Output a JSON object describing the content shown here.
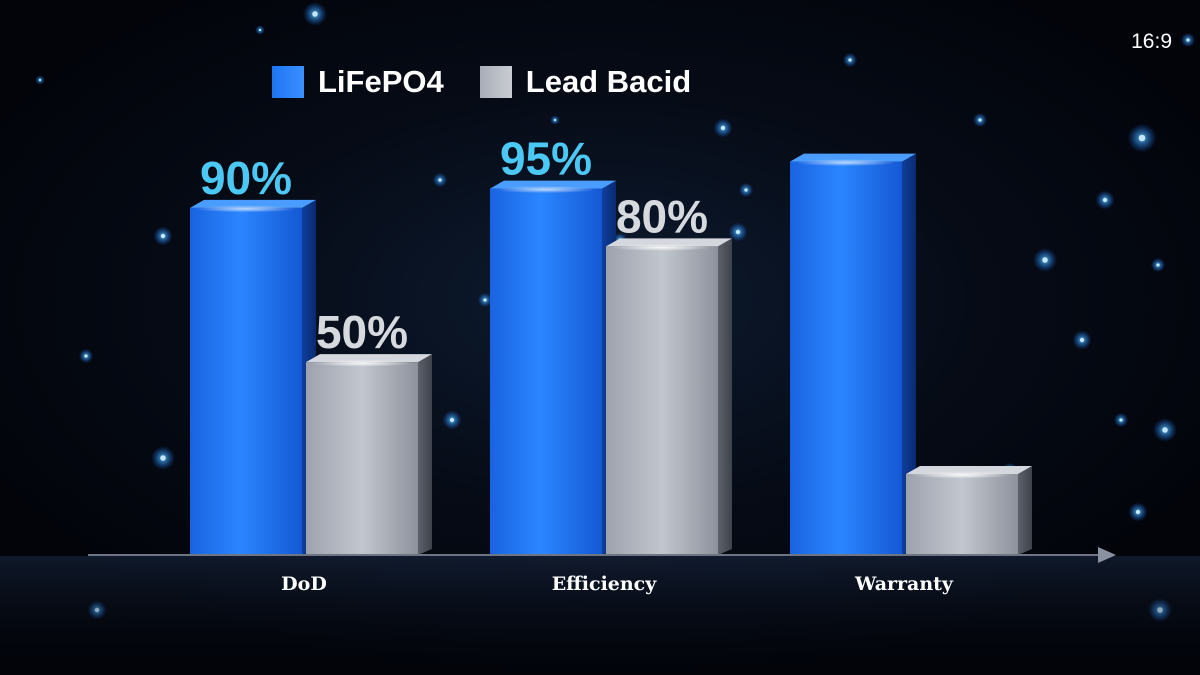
{
  "aspect_label": "16:9",
  "colors": {
    "lifepo4": "#1f74f2",
    "lead_bacid": "#a9adb7",
    "lifepo4_value_text": "#4cc8f4",
    "lead_bacid_value_text": "#d6d9de"
  },
  "chart_data": {
    "type": "bar",
    "categories": [
      "DoD",
      "Efficiency",
      "Warranty"
    ],
    "series": [
      {
        "name": "LiFePO4",
        "values": [
          90,
          95,
          102
        ],
        "labels": [
          "90%",
          "95%",
          ""
        ]
      },
      {
        "name": "Lead Bacid",
        "values": [
          50,
          80,
          21
        ],
        "labels": [
          "50%",
          "80%",
          ""
        ]
      }
    ],
    "ylim": [
      0,
      105
    ],
    "legend_position": "top-left",
    "grid": false
  }
}
